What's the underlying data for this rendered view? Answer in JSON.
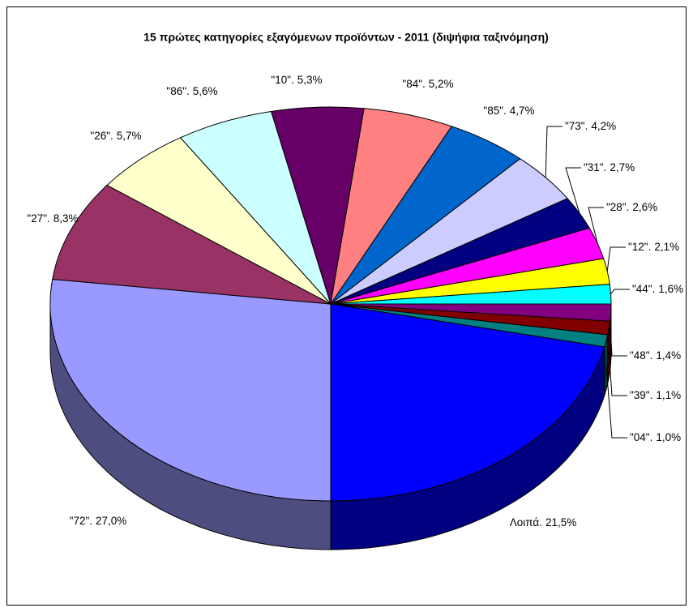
{
  "chart_data": {
    "type": "pie",
    "title": "15 πρώτες κατηγορίες εξαγόμενων προϊόντων - 2011 (διψήφια ταξινόμηση)",
    "categories": [
      "\"72\".",
      "\"27\".",
      "\"26\".",
      "\"86\".",
      "\"10\".",
      "\"84\".",
      "\"85\".",
      "\"73\".",
      "\"31\".",
      "\"28\".",
      "\"12\".",
      "\"44\".",
      "\"48\".",
      "\"39\".",
      "\"04\".",
      "Λοιπά."
    ],
    "values": [
      27.0,
      8.3,
      5.7,
      5.6,
      5.3,
      5.2,
      4.7,
      4.2,
      2.7,
      2.6,
      2.1,
      1.6,
      1.4,
      1.1,
      1.0,
      21.5
    ],
    "value_labels": [
      "27,0%",
      "8,3%",
      "5,7%",
      "5,6%",
      "5,3%",
      "5,2%",
      "4,7%",
      "4,2%",
      "2,7%",
      "2,6%",
      "2,1%",
      "1,6%",
      "1,4%",
      "1,1%",
      "1,0%",
      "21,5%"
    ],
    "colors": [
      "#9999ff",
      "#993366",
      "#ffffcc",
      "#ccffff",
      "#660066",
      "#ff8080",
      "#0066cc",
      "#ccccff",
      "#000080",
      "#ff00ff",
      "#ffff00",
      "#00ffff",
      "#800080",
      "#800000",
      "#008080",
      "#0000ff"
    ]
  }
}
